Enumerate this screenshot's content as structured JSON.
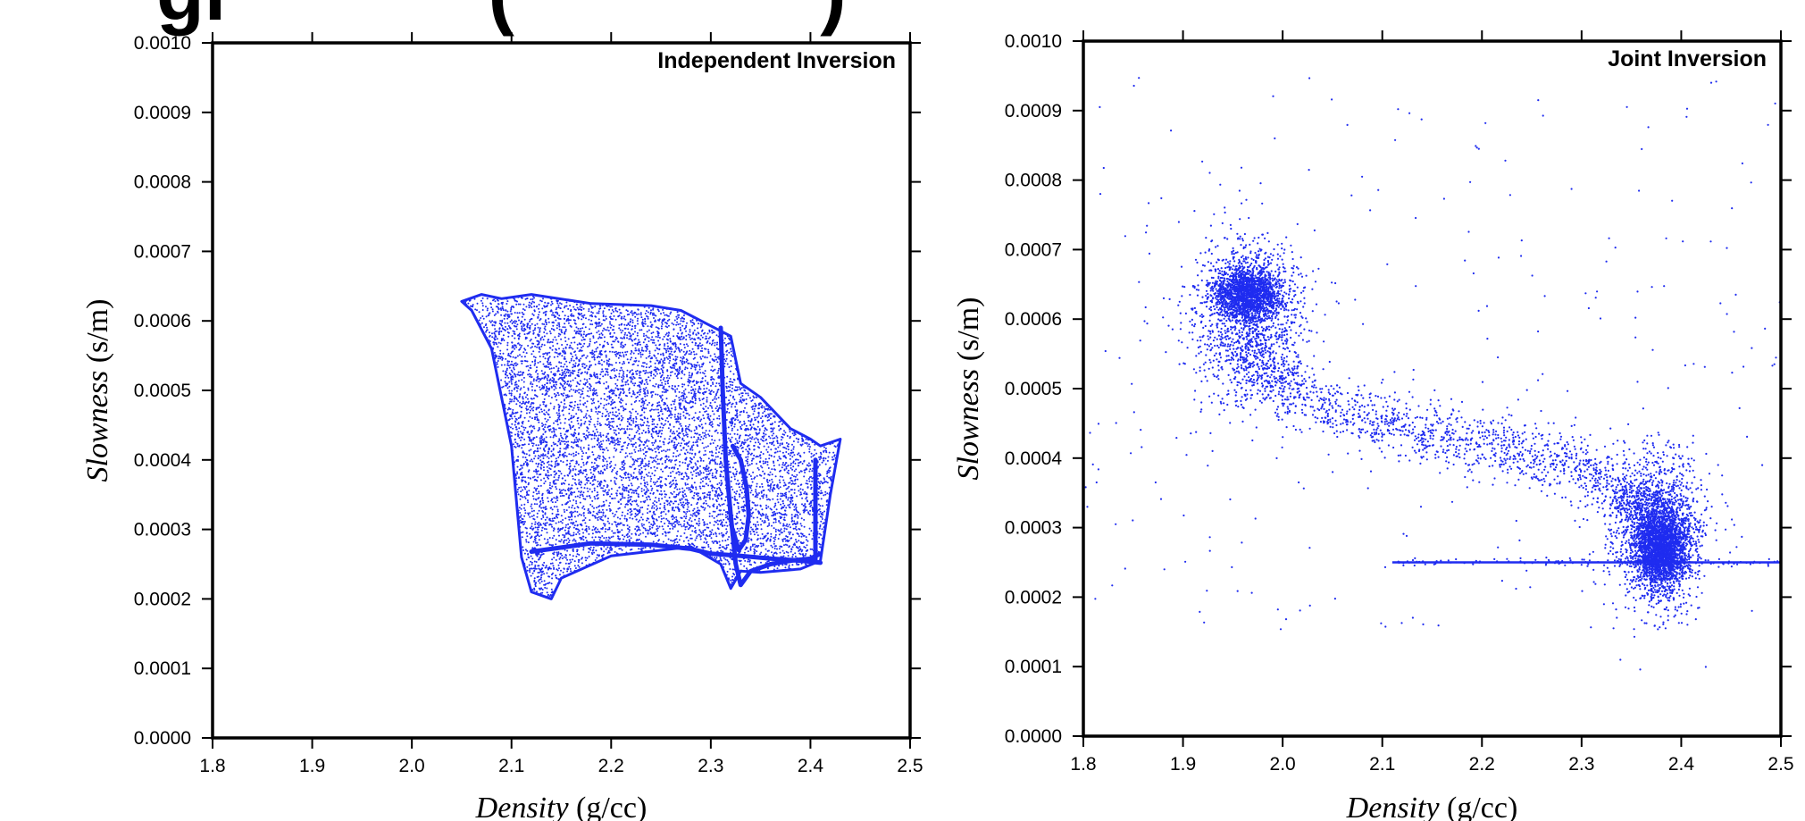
{
  "heading_fragment": "gi            (              )",
  "colors": {
    "points": "#1f2cf0",
    "axes": "#000000",
    "background": "#ffffff"
  },
  "chart_data": [
    {
      "type": "scatter",
      "title": "Independent Inversion",
      "xlabel_italic": "Density",
      "xlabel_unit": " (g/cc)",
      "ylabel_italic": "Slowness",
      "ylabel_unit": " (s/m)",
      "xlim": [
        1.8,
        2.5
      ],
      "ylim": [
        0.0,
        0.001
      ],
      "xticks": [
        "1.8",
        "1.9",
        "2.0",
        "2.1",
        "2.2",
        "2.3",
        "2.4",
        "2.5"
      ],
      "yticks": [
        "0.0000",
        "0.0001",
        "0.0002",
        "0.0003",
        "0.0004",
        "0.0005",
        "0.0006",
        "0.0007",
        "0.0008",
        "0.0009",
        "0.0010"
      ],
      "grid": false,
      "outline_x": [
        2.05,
        2.07,
        2.09,
        2.12,
        2.18,
        2.24,
        2.27,
        2.32,
        2.33,
        2.35,
        2.38,
        2.4,
        2.41,
        2.43,
        2.42,
        2.41,
        2.39,
        2.35,
        2.33,
        2.32,
        2.31,
        2.28,
        2.2,
        2.15,
        2.14,
        2.12,
        2.11,
        2.1,
        2.08,
        2.06
      ],
      "outline_y": [
        0.000628,
        0.000638,
        0.000632,
        0.000638,
        0.000625,
        0.000622,
        0.000615,
        0.000578,
        0.00051,
        0.00049,
        0.000445,
        0.00043,
        0.00042,
        0.00043,
        0.00035,
        0.000255,
        0.000243,
        0.000238,
        0.00024,
        0.000215,
        0.00025,
        0.000275,
        0.000262,
        0.00023,
        0.0002,
        0.00021,
        0.00026,
        0.00042,
        0.00056,
        0.000615
      ],
      "features": [
        {
          "kind": "band",
          "x": [
            2.12,
            2.18,
            2.24,
            2.28,
            2.3,
            2.33,
            2.36,
            2.39,
            2.41
          ],
          "y": [
            0.000268,
            0.00028,
            0.000278,
            0.000272,
            0.000265,
            0.000262,
            0.000258,
            0.000255,
            0.000252
          ]
        },
        {
          "kind": "band",
          "x": [
            2.31,
            2.312,
            2.315,
            2.32,
            2.325,
            2.33,
            2.34,
            2.36,
            2.38,
            2.4,
            2.41
          ],
          "y": [
            0.00059,
            0.0005,
            0.0004,
            0.00032,
            0.00025,
            0.00022,
            0.00024,
            0.00025,
            0.000255,
            0.000258,
            0.000265
          ]
        },
        {
          "kind": "band",
          "x": [
            2.322,
            2.33,
            2.336,
            2.338,
            2.335,
            2.328,
            2.322
          ],
          "y": [
            0.00042,
            0.0004,
            0.00036,
            0.00032,
            0.000285,
            0.00027,
            0.0003
          ]
        },
        {
          "kind": "band",
          "x": [
            2.405,
            2.405,
            2.405
          ],
          "y": [
            0.0004,
            0.00033,
            0.000255
          ]
        }
      ]
    },
    {
      "type": "scatter",
      "title": "Joint Inversion",
      "xlabel_italic": "Density",
      "xlabel_unit": " (g/cc)",
      "ylabel_italic": "Slowness",
      "ylabel_unit": " (s/m)",
      "xlim": [
        1.8,
        2.5
      ],
      "ylim": [
        0.0,
        0.001
      ],
      "xticks": [
        "1.8",
        "1.9",
        "2.0",
        "2.1",
        "2.2",
        "2.3",
        "2.4",
        "2.5"
      ],
      "yticks": [
        "0.0000",
        "0.0001",
        "0.0002",
        "0.0003",
        "0.0004",
        "0.0005",
        "0.0006",
        "0.0007",
        "0.0008",
        "0.0009",
        "0.0010"
      ],
      "grid": false,
      "clusters": [
        {
          "cx": 1.965,
          "cy": 0.000638,
          "sx": 0.016,
          "sy": 1.8e-05,
          "n": 1600
        },
        {
          "cx": 1.965,
          "cy": 0.0006,
          "sx": 0.028,
          "sy": 6e-05,
          "n": 1300
        },
        {
          "cx": 2.38,
          "cy": 0.00027,
          "sx": 0.013,
          "sy": 2.8e-05,
          "n": 2200
        },
        {
          "cx": 2.375,
          "cy": 0.0003,
          "sx": 0.024,
          "sy": 5.5e-05,
          "n": 1400
        }
      ],
      "trend_x": [
        1.97,
        2.0,
        2.05,
        2.1,
        2.15,
        2.2,
        2.25,
        2.3,
        2.34,
        2.37,
        2.38
      ],
      "trend_y": [
        0.00056,
        0.0005,
        0.00047,
        0.00045,
        0.000435,
        0.00042,
        0.000405,
        0.000385,
        0.000355,
        0.00031,
        0.00028
      ],
      "hline": {
        "y": 0.00025,
        "x0": 2.11,
        "x1": 2.5
      },
      "scatter_range_x": [
        1.8,
        2.5
      ],
      "scatter_range_y": [
        0.00015,
        0.00095
      ]
    }
  ]
}
